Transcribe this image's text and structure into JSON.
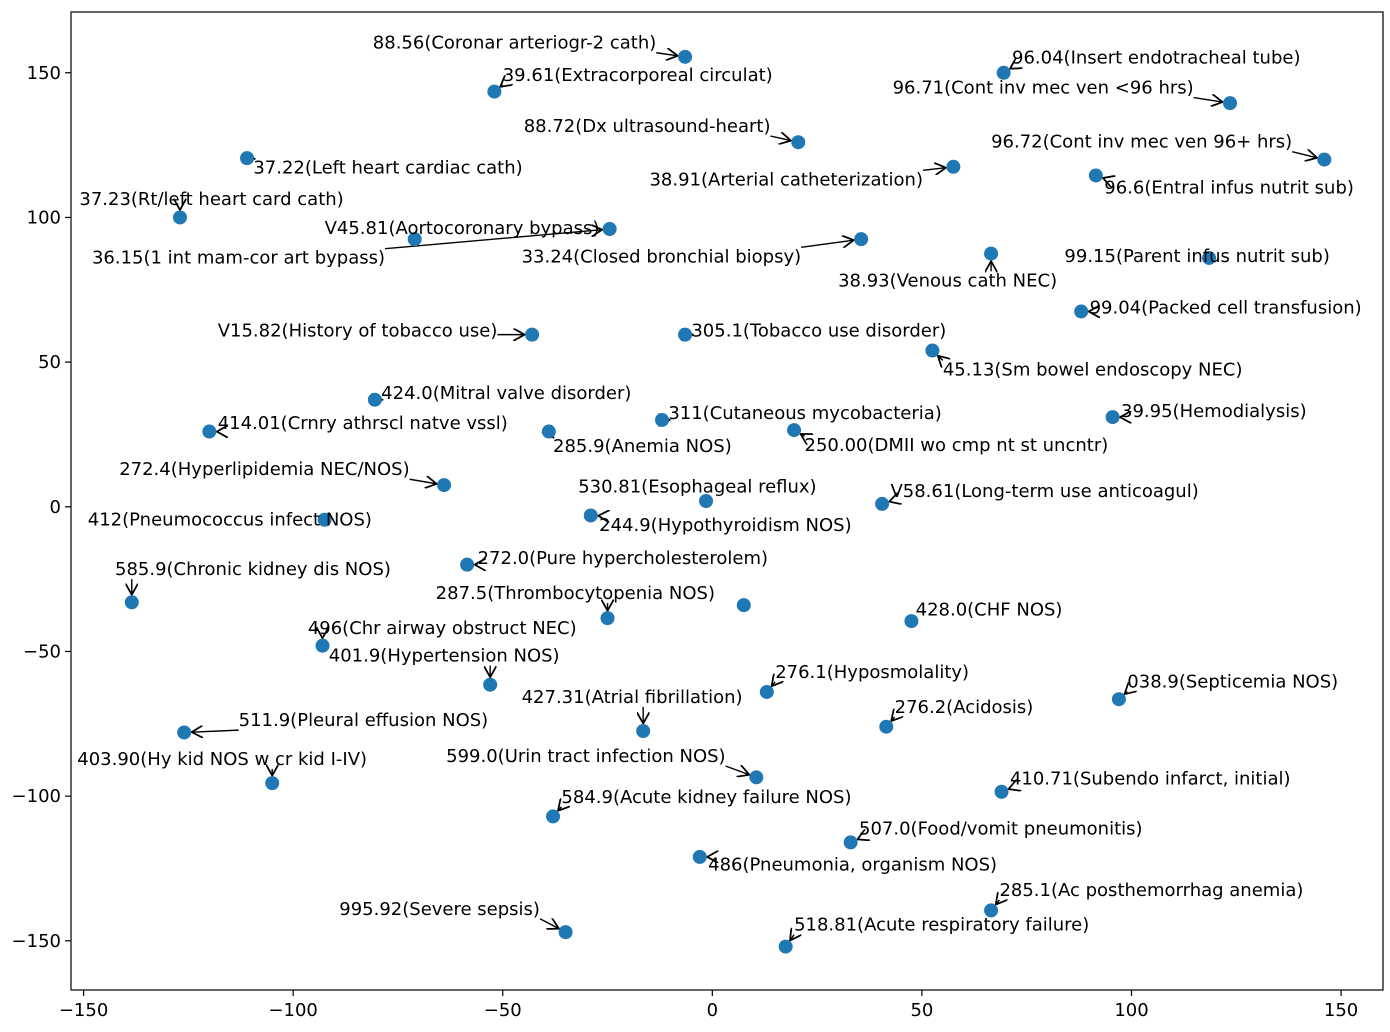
{
  "chart_data": {
    "type": "scatter",
    "title": "",
    "xlabel": "",
    "ylabel": "",
    "xlim": [
      -153,
      160
    ],
    "ylim": [
      -167,
      171
    ],
    "xticks": [
      -150,
      -100,
      -50,
      0,
      50,
      100,
      150
    ],
    "yticks": [
      -150,
      -100,
      -50,
      0,
      50,
      100,
      150
    ],
    "xtick_labels": [
      "−150",
      "−100",
      "−50",
      "0",
      "50",
      "100",
      "150"
    ],
    "ytick_labels": [
      "−150",
      "−100",
      "−50",
      "0",
      "50",
      "100",
      "150"
    ],
    "point_color": "#1f77b4",
    "grid": false,
    "points": [
      {
        "x": -6.5,
        "y": 155.5,
        "label": "88.56(Coronar arteriogr-2 cath)",
        "lx": -81,
        "ly": 158.3
      },
      {
        "x": -52,
        "y": 143.5,
        "label": "39.61(Extracorporeal circulat)",
        "lx": -50,
        "ly": 147.2
      },
      {
        "x": 69.5,
        "y": 150,
        "label": "96.04(Insert endotracheal tube)",
        "lx": 71.5,
        "ly": 153.2
      },
      {
        "x": 123.5,
        "y": 139.5,
        "label": "96.71(Cont inv mec ven <96 hrs)",
        "lx": 43,
        "ly": 142.8
      },
      {
        "x": 20.5,
        "y": 126,
        "label": "88.72(Dx ultrasound-heart)",
        "lx": -45,
        "ly": 129.5
      },
      {
        "x": -111,
        "y": 120.5,
        "label": "37.22(Left heart cardiac cath)",
        "lx": -109.5,
        "ly": 115.1
      },
      {
        "x": 146,
        "y": 120,
        "label": "96.72(Cont inv mec ven 96+ hrs)",
        "lx": 66.5,
        "ly": 124.1
      },
      {
        "x": 57.5,
        "y": 117.5,
        "label": "38.91(Arterial catheterization)",
        "lx": -15,
        "ly": 111.1
      },
      {
        "x": 91.5,
        "y": 114.5,
        "label": "96.6(Entral infus nutrit sub)",
        "lx": 93.5,
        "ly": 108.3
      },
      {
        "x": -127,
        "y": 100,
        "label": "37.23(Rt/left heart card cath)",
        "lx": -151,
        "ly": 104.3
      },
      {
        "x": -71,
        "y": 92.5,
        "label": "V45.81(Aortocoronary bypass)",
        "lx": -92.5,
        "ly": 94.3
      },
      {
        "x": -24.5,
        "y": 96,
        "label": "36.15(1 int mam-cor art bypass)",
        "lx": -148,
        "ly": 84.0
      },
      {
        "x": 35.5,
        "y": 92.5,
        "label": "33.24(Closed bronchial biopsy)",
        "lx": -45.5,
        "ly": 84.5
      },
      {
        "x": 66.5,
        "y": 87.5,
        "label": "38.93(Venous cath NEC)",
        "lx": 30,
        "ly": 76.2
      },
      {
        "x": 118.5,
        "y": 86,
        "label": "99.15(Parent infus nutrit sub)",
        "lx": 84,
        "ly": 84.6
      },
      {
        "x": 88,
        "y": 67.5,
        "label": "99.04(Packed cell transfusion)",
        "lx": 90,
        "ly": 66.8
      },
      {
        "x": -43,
        "y": 59.5,
        "label": "V15.82(History of tobacco use)",
        "lx": -118,
        "ly": 58.8
      },
      {
        "x": -6.5,
        "y": 59.5,
        "label": "305.1(Tobacco use disorder)",
        "lx": -5,
        "ly": 58.8
      },
      {
        "x": 52.5,
        "y": 54,
        "label": "45.13(Sm bowel endoscopy NEC)",
        "lx": 55,
        "ly": 45.4
      },
      {
        "x": -80.5,
        "y": 37,
        "label": "424.0(Mitral valve disorder)",
        "lx": -79,
        "ly": 37.3
      },
      {
        "x": -12,
        "y": 30,
        "label": "311(Cutaneous mycobacteria)",
        "lx": -10.5,
        "ly": 30.4
      },
      {
        "x": 95.5,
        "y": 31,
        "label": "39.95(Hemodialysis)",
        "lx": 97.5,
        "ly": 31.0
      },
      {
        "x": -120,
        "y": 26,
        "label": "414.01(Crnry athrscl natve vssl)",
        "lx": -118,
        "ly": 26.9
      },
      {
        "x": -39,
        "y": 26,
        "label": "285.9(Anemia NOS)",
        "lx": -38,
        "ly": 18.9
      },
      {
        "x": 19.5,
        "y": 26.5,
        "label": "250.00(DMII wo cmp nt st uncntr)",
        "lx": 22,
        "ly": 19.2
      },
      {
        "x": -64,
        "y": 7.5,
        "label": "272.4(Hyperlipidemia NEC/NOS)",
        "lx": -141.5,
        "ly": 10.9
      },
      {
        "x": -1.5,
        "y": 2,
        "label": "530.81(Esophageal reflux)",
        "lx": -32,
        "ly": 5.0
      },
      {
        "x": 40.5,
        "y": 1,
        "label": "V58.61(Long-term use anticoagul)",
        "lx": 42.5,
        "ly": 3.3
      },
      {
        "x": -92.5,
        "y": -4.5,
        "label": "412(Pneumococcus infect NOS)",
        "lx": -149,
        "ly": -6.4
      },
      {
        "x": -29,
        "y": -3,
        "label": "244.9(Hypothyroidism NOS)",
        "lx": -27,
        "ly": -8.3
      },
      {
        "x": -58.5,
        "y": -20,
        "label": "272.0(Pure hypercholesterolem)",
        "lx": -56,
        "ly": -19.8
      },
      {
        "x": -138.5,
        "y": -33,
        "label": "585.9(Chronic kidney dis NOS)",
        "lx": -142.5,
        "ly": -23.6
      },
      {
        "x": -25,
        "y": -38.5,
        "label": "287.5(Thrombocytopenia NOS)",
        "lx": -66,
        "ly": -31.9
      },
      {
        "x": 7.5,
        "y": -34,
        "label": "",
        "lx": 0,
        "ly": 0
      },
      {
        "x": 47.5,
        "y": -39.5,
        "label": "428.0(CHF NOS)",
        "lx": 48.5,
        "ly": -37.6
      },
      {
        "x": -93,
        "y": -48,
        "label": "496(Chr airway obstruct NEC)",
        "lx": -96.5,
        "ly": -44.0
      },
      {
        "x": -53,
        "y": -61.5,
        "label": "401.9(Hypertension NOS)",
        "lx": -91.5,
        "ly": -53.5
      },
      {
        "x": 13,
        "y": -64,
        "label": "276.1(Hyposmolality)",
        "lx": 15,
        "ly": -59.1
      },
      {
        "x": 97,
        "y": -66.5,
        "label": "038.9(Septicemia NOS)",
        "lx": 99,
        "ly": -62.5
      },
      {
        "x": -16.5,
        "y": -77.5,
        "label": "427.31(Atrial fibrillation)",
        "lx": -45.5,
        "ly": -67.8
      },
      {
        "x": 41.5,
        "y": -76,
        "label": "276.2(Acidosis)",
        "lx": 43.5,
        "ly": -71.3
      },
      {
        "x": -126,
        "y": -78,
        "label": "511.9(Pleural effusion NOS)",
        "lx": -113,
        "ly": -75.8
      },
      {
        "x": 10.5,
        "y": -93.5,
        "label": "599.0(Urin tract infection NOS)",
        "lx": -63.5,
        "ly": -88.2
      },
      {
        "x": -105,
        "y": -95.5,
        "label": "403.90(Hy kid NOS w cr kid I-IV)",
        "lx": -151.5,
        "ly": -89.2
      },
      {
        "x": 69,
        "y": -98.5,
        "label": "410.71(Subendo infarct, initial)",
        "lx": 71,
        "ly": -96.0
      },
      {
        "x": -38,
        "y": -107,
        "label": "584.9(Acute kidney failure NOS)",
        "lx": -36,
        "ly": -102.3
      },
      {
        "x": 33,
        "y": -116,
        "label": "507.0(Food/vomit pneumonitis)",
        "lx": 35,
        "ly": -113.3
      },
      {
        "x": -3,
        "y": -121,
        "label": "486(Pneumonia, organism NOS)",
        "lx": -1,
        "ly": -125.7
      },
      {
        "x": -35,
        "y": -147,
        "label": "995.92(Severe sepsis)",
        "lx": -89,
        "ly": -141.0
      },
      {
        "x": 66.5,
        "y": -139.5,
        "label": "285.1(Ac posthemorrhag anemia)",
        "lx": 68.5,
        "ly": -134.5
      },
      {
        "x": 17.5,
        "y": -152,
        "label": "518.81(Acute respiratory failure)",
        "lx": 19.5,
        "ly": -146.5
      }
    ]
  }
}
